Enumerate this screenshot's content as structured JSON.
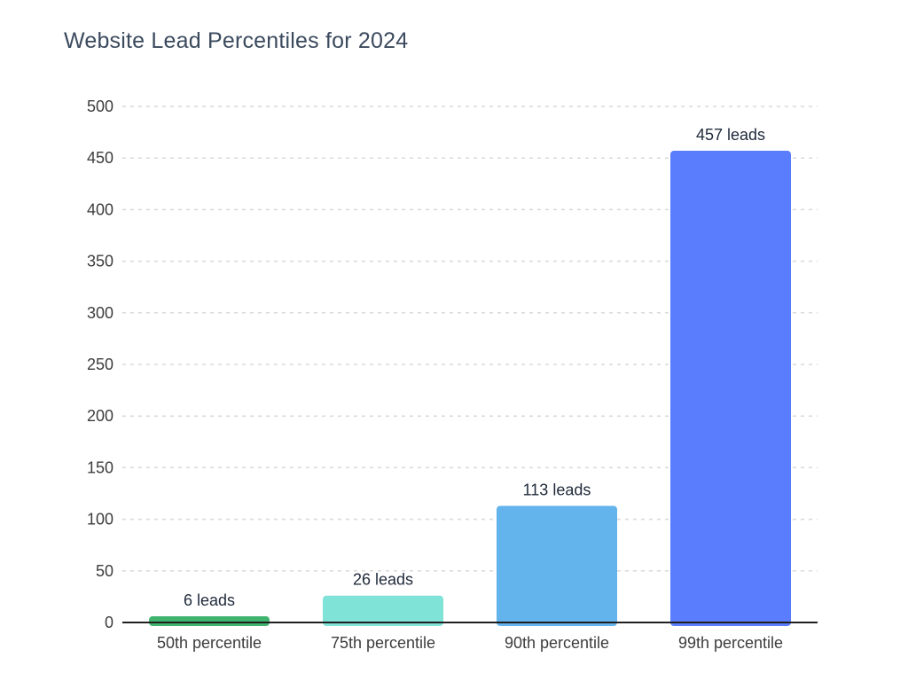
{
  "chart_data": {
    "type": "bar",
    "title": "Website Lead Percentiles for 2024",
    "xlabel": "",
    "ylabel": "",
    "categories": [
      "50th percentile",
      "75th percentile",
      "90th percentile",
      "99th percentile"
    ],
    "values": [
      6,
      26,
      113,
      457
    ],
    "data_labels": [
      "6 leads",
      "26 leads",
      "113 leads",
      "457 leads"
    ],
    "colors": [
      "#3fb46e",
      "#7fe3d8",
      "#63b3ec",
      "#597dfc"
    ],
    "ylim": [
      0,
      500
    ],
    "yticks": [
      0,
      50,
      100,
      150,
      200,
      250,
      300,
      350,
      400,
      450,
      500
    ],
    "grid": true,
    "grid_color": "#d9d9d9",
    "axis_color": "#1f1f1f",
    "legend": "none"
  }
}
